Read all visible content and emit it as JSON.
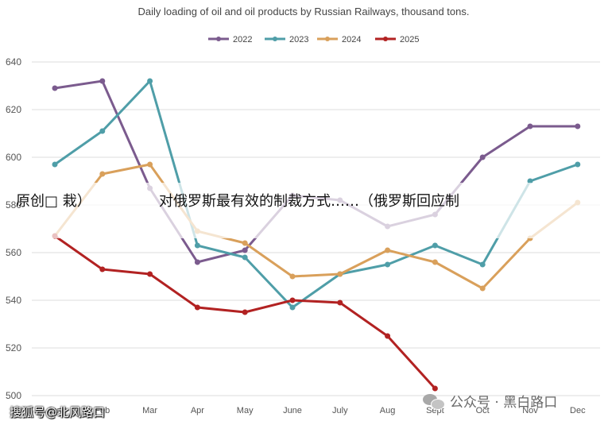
{
  "chart_data": {
    "type": "line",
    "title": "Daily loading of oil and oil products by Russian Railways, thousand tons.",
    "xlabel": "",
    "ylabel": "",
    "categories": [
      "Jan",
      "Feb",
      "Mar",
      "Apr",
      "May",
      "June",
      "July",
      "Aug",
      "Sept",
      "Oct",
      "Nov",
      "Dec"
    ],
    "ylim": [
      500,
      640
    ],
    "yticks": [
      500,
      520,
      540,
      560,
      580,
      600,
      620,
      640
    ],
    "grid": true,
    "legend_position": "top-center",
    "series": [
      {
        "name": "2022",
        "color": "#7b5b8e",
        "values": [
          629,
          632,
          587,
          556,
          561,
          584,
          582,
          571,
          576,
          600,
          613,
          613
        ]
      },
      {
        "name": "2023",
        "color": "#4f9ea8",
        "values": [
          597,
          611,
          632,
          563,
          558,
          537,
          551,
          555,
          563,
          555,
          590,
          597
        ]
      },
      {
        "name": "2024",
        "color": "#d9a05b",
        "values": [
          567,
          593,
          597,
          569,
          564,
          550,
          551,
          561,
          556,
          545,
          566,
          581
        ]
      },
      {
        "name": "2025",
        "color": "#b22222",
        "values": [
          567,
          553,
          551,
          537,
          535,
          540,
          539,
          525,
          503,
          null,
          null,
          null
        ]
      }
    ]
  },
  "overlay": {
    "headline_left": "原创□ 栽）",
    "headline_right": "对俄罗斯最有效的制裁方式……（俄罗斯回应制"
  },
  "watermarks": {
    "left": "搜狐号@北风路口",
    "right": "公众号 · 黑白路口",
    "right_icon": "wechat-icon"
  }
}
